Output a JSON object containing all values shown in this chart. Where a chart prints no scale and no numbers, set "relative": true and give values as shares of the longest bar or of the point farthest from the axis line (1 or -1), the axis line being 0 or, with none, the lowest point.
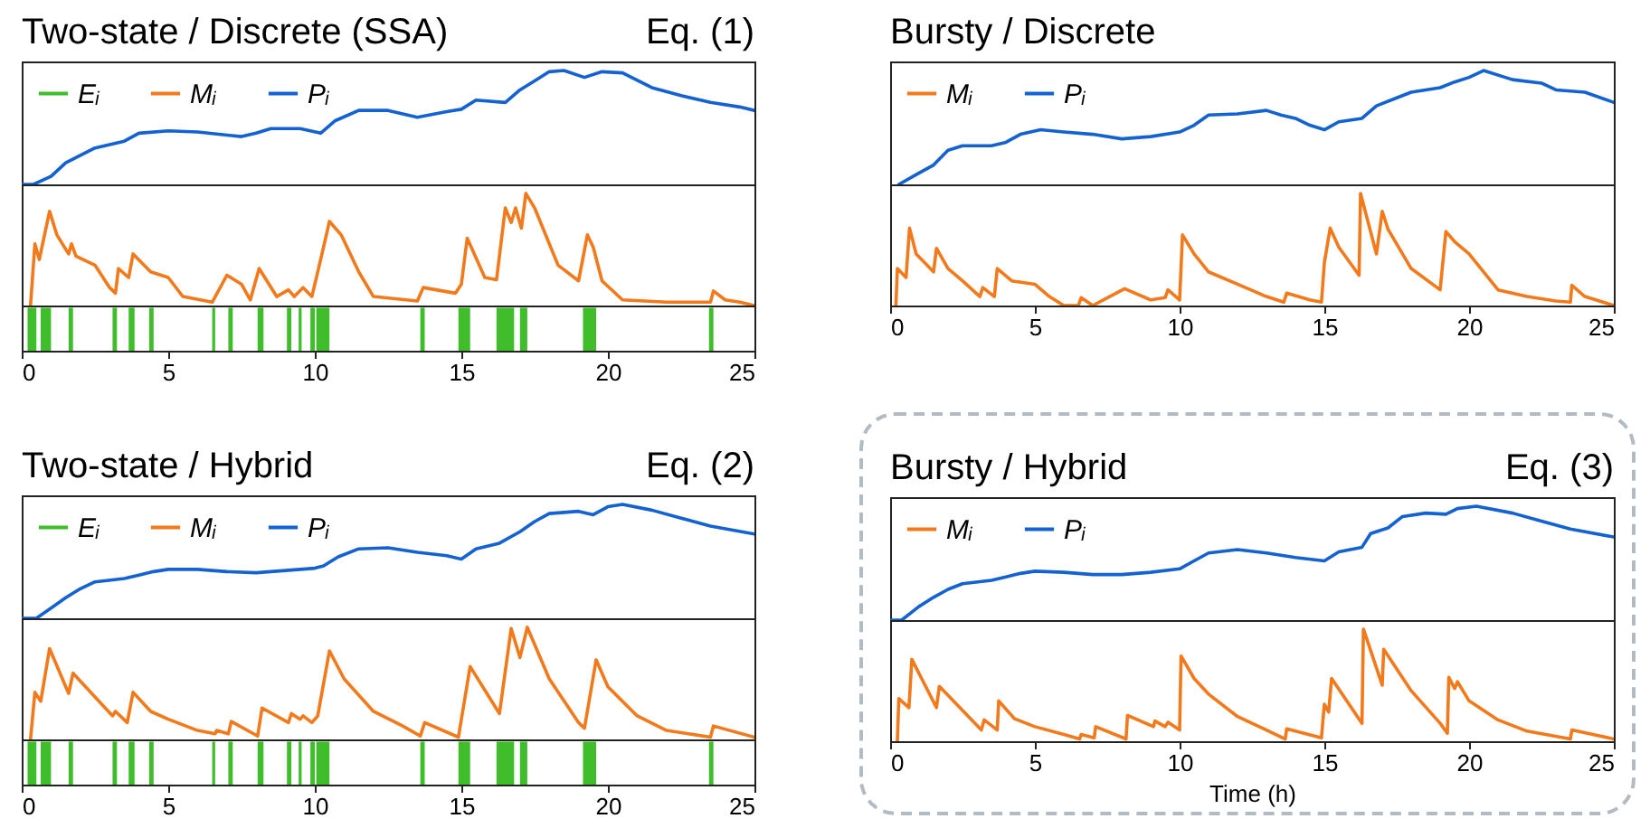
{
  "chart_data": [
    {
      "type": "line",
      "title": "Two-state / Discrete (SSA)",
      "annotations": [
        "Eq. (1)"
      ],
      "relative": true,
      "xlim": [
        0,
        25
      ],
      "tick_labels": false,
      "legend": "top left",
      "series": [
        {
          "name": "Pᵢ",
          "color": "#1462d2",
          "x": [
            0,
            0.4,
            1,
            1.5,
            2.5,
            3.5,
            4,
            5,
            6,
            7.5,
            8,
            8.5,
            9.5,
            10.2,
            10.7,
            11.5,
            12.5,
            13.5,
            14.5,
            15,
            15.5,
            16.5,
            17,
            17.5,
            18,
            18.5,
            19.2,
            19.8,
            20.5,
            21.5,
            22.5,
            23.5,
            24.5,
            25
          ],
          "values": [
            0,
            0,
            0.07,
            0.19,
            0.32,
            0.38,
            0.45,
            0.47,
            0.46,
            0.42,
            0.45,
            0.49,
            0.49,
            0.45,
            0.56,
            0.65,
            0.65,
            0.59,
            0.64,
            0.66,
            0.74,
            0.72,
            0.83,
            0.91,
            0.99,
            1,
            0.94,
            0.99,
            0.98,
            0.85,
            0.78,
            0.72,
            0.68,
            0.65
          ]
        }
      ]
    },
    {
      "type": "line",
      "relative": true,
      "xlim": [
        0,
        25
      ],
      "tick_labels": false,
      "series": [
        {
          "name": "Mᵢ",
          "color": "#f27a1c",
          "x": [
            0.3,
            0.45,
            0.6,
            0.95,
            1.2,
            1.6,
            1.7,
            1.85,
            2.5,
            3,
            3.2,
            3.3,
            3.65,
            3.8,
            4.4,
            5,
            5.5,
            6.5,
            7,
            7.5,
            7.8,
            8.1,
            8.7,
            9.1,
            9.3,
            9.6,
            9.9,
            10.2,
            10.5,
            10.9,
            11.5,
            12,
            13.5,
            13.7,
            14.8,
            15,
            15.2,
            15.8,
            16.2,
            16.5,
            16.7,
            16.85,
            17.05,
            17.2,
            17.5,
            18.3,
            19,
            19.3,
            19.5,
            19.8,
            20.5,
            22,
            23.5,
            23.6,
            24,
            24.5,
            25
          ],
          "values": [
            0,
            0.55,
            0.41,
            0.84,
            0.63,
            0.46,
            0.55,
            0.44,
            0.36,
            0.16,
            0.11,
            0.33,
            0.25,
            0.46,
            0.3,
            0.25,
            0.08,
            0.03,
            0.27,
            0.19,
            0.05,
            0.33,
            0.08,
            0.14,
            0.08,
            0.16,
            0.08,
            0.41,
            0.75,
            0.63,
            0.3,
            0.08,
            0.04,
            0.16,
            0.11,
            0.19,
            0.6,
            0.25,
            0.23,
            0.87,
            0.74,
            0.87,
            0.69,
            1,
            0.87,
            0.36,
            0.22,
            0.63,
            0.52,
            0.22,
            0.05,
            0.03,
            0.03,
            0.13,
            0.05,
            0.03,
            0
          ]
        }
      ]
    },
    {
      "type": "area",
      "relative": true,
      "xlim": [
        0,
        25
      ],
      "xticks": [
        0,
        5,
        10,
        15,
        20,
        25
      ],
      "tick_labels": "x",
      "series": [
        {
          "name": "Eᵢ",
          "color": "#3fbd2b",
          "x": [
            0,
            0.2,
            0.2,
            0.5,
            0.5,
            0.65,
            0.65,
            1.0,
            1.0,
            1.6,
            1.6,
            1.75,
            1.75,
            3.1,
            3.1,
            3.25,
            3.25,
            3.65,
            3.65,
            3.85,
            3.85,
            4.35,
            4.35,
            4.5,
            4.5,
            6.5,
            6.5,
            6.6,
            6.6,
            7.05,
            7.05,
            7.2,
            7.2,
            8.05,
            8.05,
            8.25,
            8.25,
            9.05,
            9.05,
            9.2,
            9.2,
            9.45,
            9.45,
            9.55,
            9.55,
            9.85,
            9.85,
            10.0,
            10.0,
            10.05,
            10.05,
            10.5,
            10.5,
            13.6,
            13.6,
            13.75,
            13.75,
            14.9,
            14.9,
            15.3,
            15.3,
            16.2,
            16.2,
            16.8,
            16.8,
            17.0,
            17.0,
            17.25,
            17.25,
            19.15,
            19.15,
            19.6,
            19.6,
            23.45,
            23.45,
            23.6,
            23.6,
            25
          ],
          "values": [
            0,
            0,
            1,
            1,
            0,
            0,
            1,
            1,
            0,
            0,
            1,
            1,
            0,
            0,
            1,
            1,
            0,
            0,
            1,
            1,
            0,
            0,
            1,
            1,
            0,
            0,
            1,
            1,
            0,
            0,
            1,
            1,
            0,
            0,
            1,
            1,
            0,
            0,
            1,
            1,
            0,
            0,
            1,
            1,
            0,
            0,
            1,
            1,
            0,
            0,
            1,
            1,
            0,
            0,
            1,
            1,
            0,
            0,
            1,
            1,
            0,
            0,
            1,
            1,
            0,
            0,
            1,
            1,
            0,
            0,
            1,
            1,
            0,
            0,
            1,
            1,
            0,
            0
          ]
        }
      ]
    },
    {
      "type": "line",
      "title": "Bursty / Discrete",
      "relative": true,
      "xlim": [
        0,
        25
      ],
      "tick_labels": false,
      "legend": "top left",
      "series": [
        {
          "name": "Pᵢ",
          "color": "#1462d2",
          "x": [
            0.3,
            1,
            1.5,
            2,
            2.5,
            3.5,
            4,
            4.5,
            5.2,
            6,
            7,
            8,
            9,
            10,
            10.5,
            11,
            12,
            13,
            13.5,
            14,
            14.5,
            15,
            15.5,
            16.3,
            16.8,
            17.5,
            18,
            19,
            19.5,
            20,
            20.5,
            21.5,
            22.5,
            23,
            24,
            25
          ],
          "values": [
            0,
            0.1,
            0.17,
            0.3,
            0.34,
            0.34,
            0.37,
            0.44,
            0.48,
            0.46,
            0.44,
            0.4,
            0.42,
            0.46,
            0.52,
            0.61,
            0.62,
            0.65,
            0.61,
            0.58,
            0.52,
            0.48,
            0.55,
            0.58,
            0.69,
            0.76,
            0.81,
            0.85,
            0.9,
            0.94,
            1,
            0.92,
            0.89,
            0.83,
            0.81,
            0.72
          ]
        }
      ]
    },
    {
      "type": "line",
      "relative": true,
      "xlim": [
        0,
        25
      ],
      "xticks": [
        0,
        5,
        10,
        15,
        20,
        25
      ],
      "tick_labels": "x",
      "series": [
        {
          "name": "Mᵢ",
          "color": "#f27a1c",
          "x": [
            0.2,
            0.25,
            0.55,
            0.67,
            0.9,
            1.5,
            1.6,
            2,
            2.5,
            3.1,
            3.2,
            3.6,
            3.7,
            4.2,
            5,
            5.5,
            6,
            6.5,
            6.6,
            7,
            8.1,
            9,
            9.5,
            9.6,
            10,
            10.1,
            10.5,
            11,
            12,
            13,
            13.6,
            13.7,
            14.5,
            14.9,
            15,
            15.2,
            15.5,
            16.2,
            16.25,
            16.8,
            17,
            17.2,
            18,
            19,
            19.2,
            19.5,
            20,
            21,
            22,
            23,
            23.5,
            23.55,
            24,
            25
          ],
          "values": [
            0,
            0.33,
            0.25,
            0.69,
            0.46,
            0.3,
            0.51,
            0.33,
            0.22,
            0.08,
            0.16,
            0.08,
            0.33,
            0.22,
            0.19,
            0.08,
            0,
            0,
            0.07,
            0,
            0.15,
            0.05,
            0.07,
            0.14,
            0.05,
            0.63,
            0.46,
            0.3,
            0.19,
            0.08,
            0.03,
            0.11,
            0.05,
            0.03,
            0.38,
            0.69,
            0.52,
            0.27,
            1,
            0.46,
            0.84,
            0.68,
            0.33,
            0.14,
            0.66,
            0.57,
            0.46,
            0.14,
            0.08,
            0.04,
            0.03,
            0.18,
            0.08,
            0
          ]
        }
      ]
    },
    {
      "type": "line",
      "title": "Two-state / Hybrid",
      "annotations": [
        "Eq. (2)"
      ],
      "relative": true,
      "xlim": [
        0,
        25
      ],
      "tick_labels": false,
      "legend": "top left",
      "series": [
        {
          "name": "Pᵢ",
          "color": "#1462d2",
          "x": [
            0,
            0.5,
            1,
            1.5,
            2,
            2.5,
            3.5,
            4,
            4.5,
            5,
            6,
            7,
            8,
            9,
            10,
            10.3,
            10.8,
            11.5,
            12.5,
            13.5,
            14.5,
            15,
            15.5,
            16.3,
            17,
            17.5,
            18,
            19,
            19.5,
            20,
            20.5,
            21.5,
            22.5,
            23.5,
            25
          ],
          "values": [
            0,
            0,
            0.09,
            0.18,
            0.26,
            0.32,
            0.35,
            0.38,
            0.41,
            0.43,
            0.43,
            0.41,
            0.4,
            0.42,
            0.44,
            0.46,
            0.54,
            0.61,
            0.62,
            0.58,
            0.55,
            0.52,
            0.61,
            0.66,
            0.76,
            0.85,
            0.92,
            0.94,
            0.91,
            0.98,
            1,
            0.95,
            0.88,
            0.81,
            0.74
          ]
        }
      ]
    },
    {
      "type": "line",
      "relative": true,
      "xlim": [
        0,
        25
      ],
      "tick_labels": false,
      "series": [
        {
          "name": "Mᵢ",
          "color": "#f27a1c",
          "x": [
            0.3,
            0.45,
            0.65,
            0.95,
            1.6,
            1.75,
            3.1,
            3.2,
            3.6,
            3.8,
            4.4,
            5,
            6,
            6.6,
            6.65,
            7.05,
            7.15,
            8.05,
            8.2,
            9.1,
            9.2,
            9.5,
            9.6,
            9.9,
            10.1,
            10.5,
            11,
            12,
            13,
            13.6,
            13.75,
            14.9,
            15.3,
            16.3,
            16.7,
            17,
            17.25,
            18,
            19,
            19.2,
            19.6,
            20,
            21,
            22,
            23.5,
            23.6,
            25
          ],
          "values": [
            0,
            0.42,
            0.34,
            0.81,
            0.41,
            0.59,
            0.21,
            0.25,
            0.15,
            0.42,
            0.25,
            0.18,
            0.08,
            0.05,
            0.08,
            0.05,
            0.16,
            0.03,
            0.28,
            0.15,
            0.23,
            0.18,
            0.21,
            0.15,
            0.21,
            0.79,
            0.54,
            0.25,
            0.12,
            0.03,
            0.15,
            0.02,
            0.65,
            0.23,
            0.99,
            0.73,
            1,
            0.54,
            0.15,
            0.1,
            0.71,
            0.47,
            0.21,
            0.08,
            0.02,
            0.12,
            0.02
          ]
        }
      ]
    },
    {
      "type": "area",
      "relative": true,
      "xlim": [
        0,
        25
      ],
      "xticks": [
        0,
        5,
        10,
        15,
        20,
        25
      ],
      "tick_labels": "x",
      "series": [
        {
          "name": "Eᵢ",
          "color": "#3fbd2b",
          "x": [
            0,
            0.2,
            0.2,
            0.5,
            0.5,
            0.65,
            0.65,
            1.0,
            1.0,
            1.6,
            1.6,
            1.75,
            1.75,
            3.1,
            3.1,
            3.25,
            3.25,
            3.65,
            3.65,
            3.85,
            3.85,
            4.35,
            4.35,
            4.5,
            4.5,
            6.5,
            6.5,
            6.6,
            6.6,
            7.05,
            7.05,
            7.2,
            7.2,
            8.05,
            8.05,
            8.25,
            8.25,
            9.05,
            9.05,
            9.2,
            9.2,
            9.45,
            9.45,
            9.55,
            9.55,
            9.85,
            9.85,
            10.0,
            10.0,
            10.05,
            10.05,
            10.5,
            10.5,
            13.6,
            13.6,
            13.75,
            13.75,
            14.9,
            14.9,
            15.3,
            15.3,
            16.2,
            16.2,
            16.8,
            16.8,
            17.0,
            17.0,
            17.25,
            17.25,
            19.15,
            19.15,
            19.6,
            19.6,
            23.45,
            23.45,
            23.6,
            23.6,
            25
          ],
          "values": [
            0,
            0,
            1,
            1,
            0,
            0,
            1,
            1,
            0,
            0,
            1,
            1,
            0,
            0,
            1,
            1,
            0,
            0,
            1,
            1,
            0,
            0,
            1,
            1,
            0,
            0,
            1,
            1,
            0,
            0,
            1,
            1,
            0,
            0,
            1,
            1,
            0,
            0,
            1,
            1,
            0,
            0,
            1,
            1,
            0,
            0,
            1,
            1,
            0,
            0,
            1,
            1,
            0,
            0,
            1,
            1,
            0,
            0,
            1,
            1,
            0,
            0,
            1,
            1,
            0,
            0,
            1,
            1,
            0,
            0,
            1,
            1,
            0,
            0,
            1,
            1,
            0,
            0
          ]
        }
      ]
    },
    {
      "type": "line",
      "title": "Bursty / Hybrid",
      "annotations": [
        "Eq. (3)"
      ],
      "relative": true,
      "xlim": [
        0,
        25
      ],
      "tick_labels": false,
      "legend": "top left",
      "series": [
        {
          "name": "Pᵢ",
          "color": "#1462d2",
          "x": [
            0,
            0.4,
            1,
            1.5,
            2,
            2.5,
            3.5,
            4,
            4.5,
            5,
            6,
            7,
            8,
            9,
            10,
            10.5,
            11,
            12,
            13,
            14,
            15,
            15.5,
            16.3,
            16.6,
            17.2,
            17.7,
            18.5,
            19.2,
            19.6,
            20.25,
            21.5,
            22.5,
            23.5,
            25
          ],
          "values": [
            0,
            0,
            0.12,
            0.2,
            0.27,
            0.32,
            0.35,
            0.38,
            0.41,
            0.43,
            0.42,
            0.4,
            0.4,
            0.42,
            0.45,
            0.52,
            0.59,
            0.62,
            0.59,
            0.55,
            0.52,
            0.6,
            0.64,
            0.76,
            0.81,
            0.91,
            0.94,
            0.93,
            0.98,
            1,
            0.94,
            0.87,
            0.8,
            0.73
          ]
        }
      ]
    },
    {
      "type": "line",
      "xlabel": "Time (h)",
      "relative": true,
      "xlim": [
        0,
        25
      ],
      "xticks": [
        0,
        5,
        10,
        15,
        20,
        25
      ],
      "tick_labels": "x",
      "series": [
        {
          "name": "Mᵢ",
          "color": "#f27a1c",
          "x": [
            0.25,
            0.3,
            0.65,
            0.75,
            1.6,
            1.7,
            3.15,
            3.25,
            3.7,
            3.75,
            4.3,
            5,
            6,
            6.55,
            6.6,
            7.05,
            7.1,
            8.15,
            8.2,
            9.1,
            9.15,
            9.5,
            9.6,
            10,
            10.05,
            10.5,
            11,
            12,
            13,
            13.65,
            13.7,
            14.9,
            15,
            15.15,
            15.25,
            16.3,
            16.35,
            17,
            17.05,
            18,
            19,
            19.25,
            19.3,
            19.5,
            19.6,
            20,
            21,
            22,
            23.5,
            23.55,
            25
          ],
          "values": [
            0,
            0.38,
            0.3,
            0.73,
            0.3,
            0.49,
            0.1,
            0.19,
            0.1,
            0.36,
            0.2,
            0.13,
            0.06,
            0.02,
            0.06,
            0.03,
            0.13,
            0.02,
            0.23,
            0.13,
            0.18,
            0.13,
            0.17,
            0.1,
            0.76,
            0.56,
            0.42,
            0.22,
            0.1,
            0.02,
            0.11,
            0.03,
            0.33,
            0.26,
            0.56,
            0.16,
            1,
            0.5,
            0.82,
            0.45,
            0.16,
            0.07,
            0.57,
            0.47,
            0.53,
            0.36,
            0.19,
            0.09,
            0.02,
            0.1,
            0.02
          ]
        }
      ]
    }
  ]
}
